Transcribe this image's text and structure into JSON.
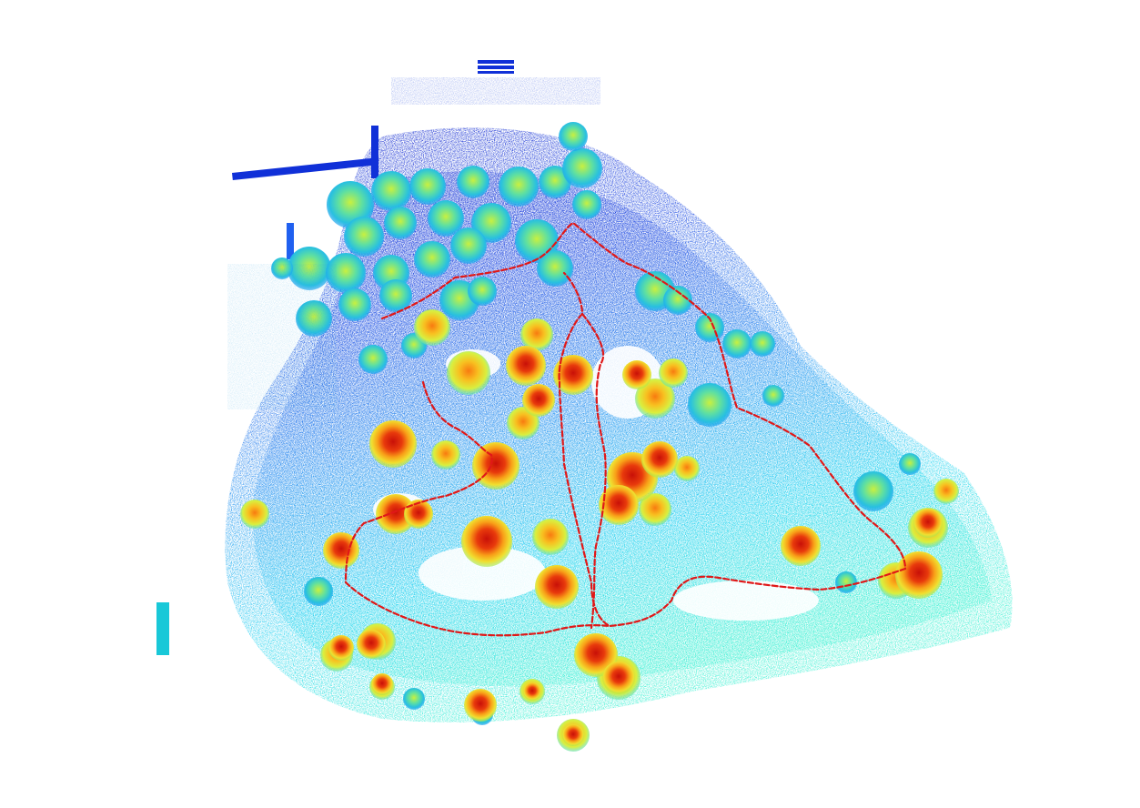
{
  "scene": {
    "description_visible_text": "",
    "colors": {
      "background": "#ffffff",
      "ground_dark_blue": "#1030d8",
      "ground_blue": "#1e78f0",
      "ground_cyan": "#18d8f0",
      "ground_aqua": "#30f0d0",
      "tree_canopy_teal": "#30c8d0",
      "tree_canopy_green": "#a8e840",
      "tree_canopy_yellow": "#f8d820",
      "tree_canopy_orange": "#f07010",
      "tree_canopy_red": "#d81808",
      "trajectory_red": "#e01818"
    }
  }
}
